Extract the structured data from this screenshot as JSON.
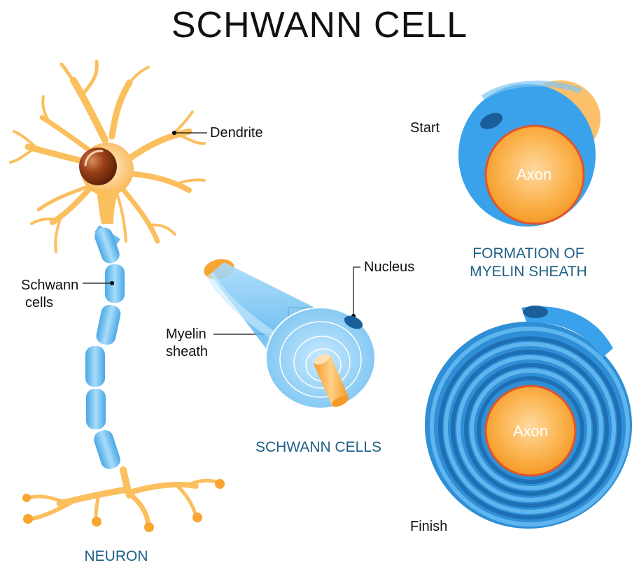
{
  "title": "SCHWANN CELL",
  "labels": {
    "dendrite": "Dendrite",
    "schwann_cells_line1": "Schwann",
    "schwann_cells_line2": "cells",
    "nucleus": "Nucleus",
    "myelin_sheath_line1": "Myelin",
    "myelin_sheath_line2": "sheath",
    "start": "Start",
    "finish": "Finish",
    "axon_top": "Axon",
    "axon_bottom": "Axon"
  },
  "captions": {
    "neuron": "NEURON",
    "schwann_cells": "SCHWANN CELLS",
    "formation_line1": "FORMATION OF",
    "formation_line2": "MYELIN SHEATH"
  },
  "colors": {
    "neuron_orange": "#fbbf5e",
    "axon_orange": "#f8a531",
    "myelin_blue": "#3aa2ea",
    "myelin_light": "#8fd0f7",
    "nucleus_brown": "#8b3a1a",
    "caption_blue": "#1f5f86",
    "outline_red": "#e0552a"
  }
}
